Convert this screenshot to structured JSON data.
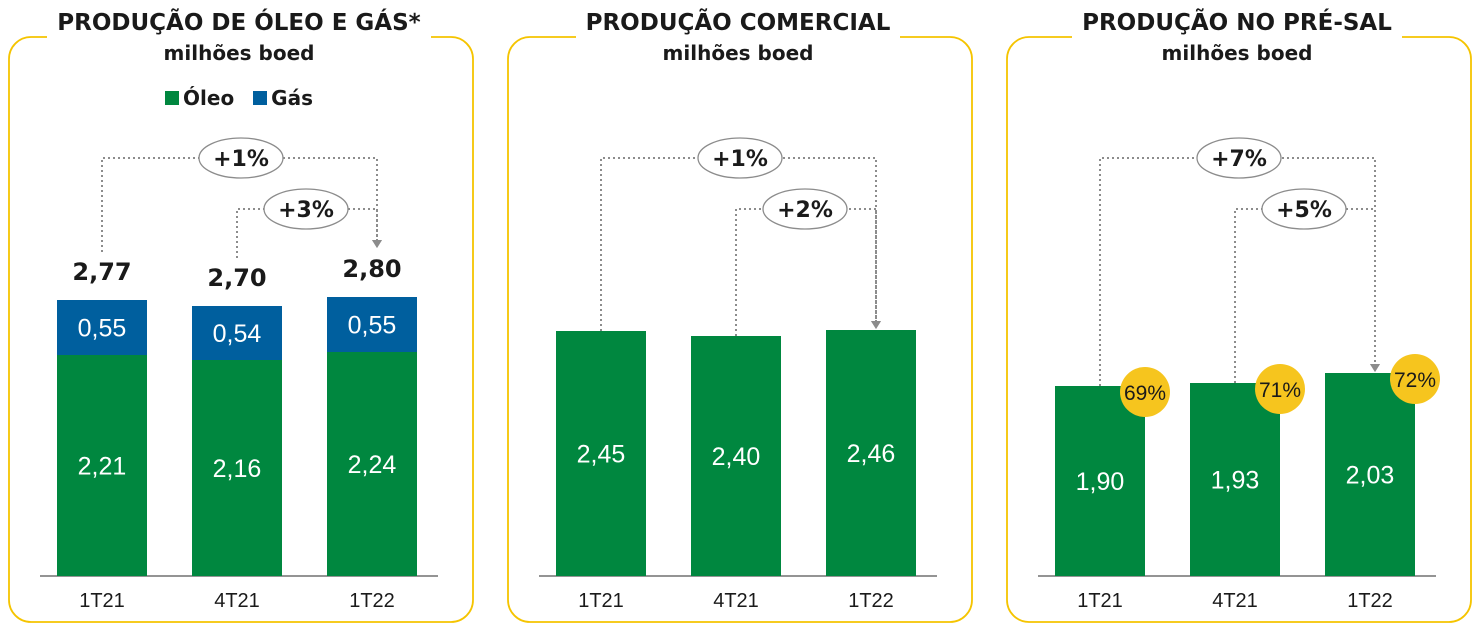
{
  "colors": {
    "oil": "#00873F",
    "gas": "#005F9E",
    "frame": "#F5C400",
    "badge": "#F6C51E",
    "arrow": "#8c8c8c"
  },
  "panels": [
    {
      "title": "PRODUÇÃO DE ÓLEO E GÁS*",
      "unit": "milhões boed",
      "legend": [
        {
          "name": "Óleo",
          "color_key": "oil"
        },
        {
          "name": "Gás",
          "color_key": "gas"
        }
      ],
      "arrows": [
        {
          "label": "+1%",
          "from": 0,
          "to": 2
        },
        {
          "label": "+3%",
          "from": 1,
          "to": 2
        }
      ]
    },
    {
      "title": "PRODUÇÃO COMERCIAL",
      "unit": "milhões boed",
      "legend": [],
      "arrows": [
        {
          "label": "+1%",
          "from": 0,
          "to": 2
        },
        {
          "label": "+2%",
          "from": 1,
          "to": 2
        }
      ]
    },
    {
      "title": "PRODUÇÃO NO PRÉ-SAL",
      "unit": "milhões boed",
      "legend": [],
      "arrows": [
        {
          "label": "+7%",
          "from": 0,
          "to": 2
        },
        {
          "label": "+5%",
          "from": 1,
          "to": 2
        }
      ]
    }
  ],
  "chart_data": [
    {
      "type": "bar",
      "stacked": true,
      "title": "PRODUÇÃO DE ÓLEO E GÁS*",
      "ylabel": "milhões boed",
      "categories": [
        "1T21",
        "4T21",
        "1T22"
      ],
      "series": [
        {
          "name": "Óleo",
          "values": [
            2.21,
            2.16,
            2.24
          ],
          "labels": [
            "2,21",
            "2,16",
            "2,24"
          ]
        },
        {
          "name": "Gás",
          "values": [
            0.55,
            0.54,
            0.55
          ],
          "labels": [
            "0,55",
            "0,54",
            "0,55"
          ]
        }
      ],
      "totals": [
        2.77,
        2.7,
        2.8
      ],
      "total_labels": [
        "2,77",
        "2,70",
        "2,80"
      ],
      "ylim": [
        0,
        3.4
      ]
    },
    {
      "type": "bar",
      "title": "PRODUÇÃO COMERCIAL",
      "ylabel": "milhões boed",
      "categories": [
        "1T21",
        "4T21",
        "1T22"
      ],
      "series": [
        {
          "values": [
            2.45,
            2.4,
            2.46
          ],
          "labels": [
            "2,45",
            "2,40",
            "2,46"
          ]
        }
      ],
      "ylim": [
        0,
        3.4
      ]
    },
    {
      "type": "bar",
      "title": "PRODUÇÃO NO PRÉ-SAL",
      "ylabel": "milhões boed",
      "categories": [
        "1T21",
        "4T21",
        "1T22"
      ],
      "series": [
        {
          "values": [
            1.9,
            1.93,
            2.03
          ],
          "labels": [
            "1,90",
            "1,93",
            "2,03"
          ]
        }
      ],
      "share_labels": [
        "69%",
        "71%",
        "72%"
      ],
      "ylim": [
        0,
        3.4
      ]
    }
  ]
}
